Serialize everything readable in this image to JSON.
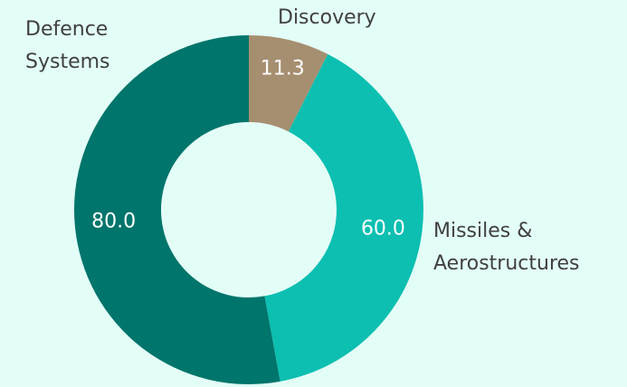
{
  "chart_data": {
    "type": "donut",
    "categories": [
      "Discovery",
      "Missiles & Aerostructures",
      "Defence Systems"
    ],
    "values": [
      11.3,
      60.0,
      80.0
    ],
    "value_labels": [
      "11.3",
      "60.0",
      "80.0"
    ],
    "colors": [
      "#a68f70",
      "#0cbfb1",
      "#00756b"
    ]
  }
}
